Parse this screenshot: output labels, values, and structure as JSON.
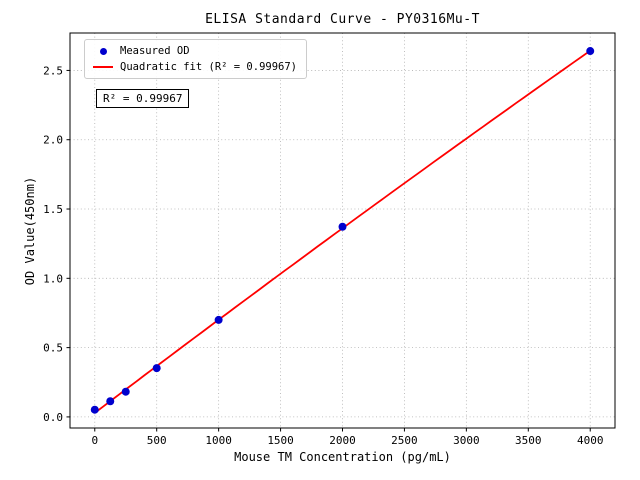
{
  "chart_data": {
    "type": "scatter",
    "title": "ELISA Standard Curve - PY0316Mu-T",
    "xlabel": "Mouse TM Concentration (pg/mL)",
    "ylabel": "OD Value(450nm)",
    "xlim": [
      -200,
      4200
    ],
    "ylim": [
      -0.08,
      2.77
    ],
    "grid": true,
    "grid_color": "#b0b0b0",
    "legend_position": "upper-left",
    "x_tick_values": [
      0,
      500,
      1000,
      1500,
      2000,
      2500,
      3000,
      3500,
      4000
    ],
    "x_tick_labels": [
      "0",
      "500",
      "1000",
      "1500",
      "2000",
      "2500",
      "3000",
      "3500",
      "4000"
    ],
    "y_tick_values": [
      0.0,
      0.5,
      1.0,
      1.5,
      2.0,
      2.5
    ],
    "y_tick_labels": [
      "0.0",
      "0.5",
      "1.0",
      "1.5",
      "2.0",
      "2.5"
    ],
    "series": [
      {
        "name": "Measured OD",
        "type": "scatter",
        "color": "#0000cd",
        "x": [
          0,
          125,
          250,
          500,
          1000,
          2000,
          4000
        ],
        "y": [
          0.052,
          0.113,
          0.182,
          0.352,
          0.7,
          1.372,
          2.64
        ]
      },
      {
        "name": "Quadratic fit (R² = 0.99967)",
        "type": "line",
        "color": "#ff0000"
      }
    ],
    "annotation": "R² = 0.99967"
  }
}
